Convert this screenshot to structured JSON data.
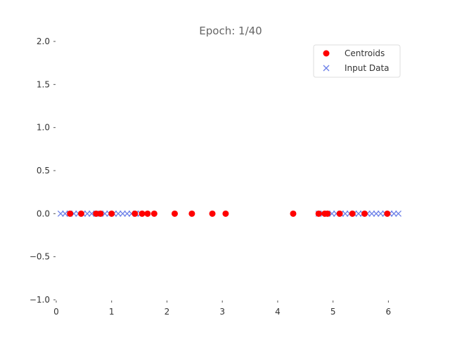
{
  "chart_data": {
    "type": "scatter",
    "title": "Epoch: 1/40",
    "xlabel": "",
    "ylabel": "",
    "xlim": [
      0,
      6.3
    ],
    "ylim": [
      -1.0,
      2.0
    ],
    "x_ticks": [
      0,
      1,
      2,
      3,
      4,
      5,
      6
    ],
    "x_tick_labels": [
      "0",
      "1",
      "2",
      "3",
      "4",
      "5",
      "6"
    ],
    "y_ticks": [
      2.0,
      1.5,
      1.0,
      0.5,
      0.0,
      -0.5,
      -1.0
    ],
    "y_tick_labels": [
      "2.0",
      "1.5",
      "1.0",
      "0.5",
      "0.0",
      "−0.5",
      "−1.0"
    ],
    "grid": false,
    "legend_position": "upper-right",
    "series": [
      {
        "name": "Centroids",
        "marker": "circle",
        "color": "#ff0000",
        "x": [
          0.25,
          0.45,
          0.72,
          0.8,
          1.0,
          1.42,
          1.55,
          1.65,
          1.77,
          2.14,
          2.45,
          2.82,
          3.06,
          4.28,
          4.74,
          4.85,
          4.9,
          5.12,
          5.35,
          5.57,
          5.98
        ],
        "y": [
          0,
          0,
          0,
          0,
          0,
          0,
          0,
          0,
          0,
          0,
          0,
          0,
          0,
          0,
          0,
          0,
          0,
          0,
          0,
          0,
          0
        ]
      },
      {
        "name": "Input Data",
        "marker": "x",
        "color": "#6b7fe8",
        "x": [
          0.08,
          0.16,
          0.24,
          0.32,
          0.4,
          0.48,
          0.56,
          0.64,
          0.72,
          0.8,
          0.88,
          0.96,
          1.04,
          1.12,
          1.2,
          1.28,
          1.36,
          1.44,
          1.52,
          1.6,
          4.74,
          4.82,
          4.9,
          4.98,
          5.06,
          5.14,
          5.22,
          5.3,
          5.38,
          5.46,
          5.54,
          5.62,
          5.7,
          5.78,
          5.86,
          5.94,
          6.02,
          6.1,
          6.18
        ],
        "y": [
          0,
          0,
          0,
          0,
          0,
          0,
          0,
          0,
          0,
          0,
          0,
          0,
          0,
          0,
          0,
          0,
          0,
          0,
          0,
          0,
          0,
          0,
          0,
          0,
          0,
          0,
          0,
          0,
          0,
          0,
          0,
          0,
          0,
          0,
          0,
          0,
          0,
          0,
          0
        ]
      }
    ]
  }
}
